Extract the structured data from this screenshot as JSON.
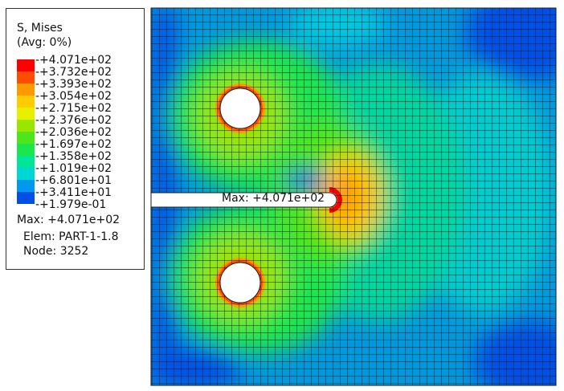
{
  "legend": {
    "title": "S, Mises",
    "subtitle": "(Avg: 0%)",
    "entries": [
      {
        "label": "+4.071e+02",
        "color": "#ff0000"
      },
      {
        "label": "+3.732e+02",
        "color": "#ff4d00"
      },
      {
        "label": "+3.393e+02",
        "color": "#ff9900"
      },
      {
        "label": "+3.054e+02",
        "color": "#ffcc00"
      },
      {
        "label": "+2.715e+02",
        "color": "#e6f000"
      },
      {
        "label": "+2.376e+02",
        "color": "#99e600"
      },
      {
        "label": "+2.036e+02",
        "color": "#4de61a"
      },
      {
        "label": "+1.697e+02",
        "color": "#1ae64d"
      },
      {
        "label": "+1.358e+02",
        "color": "#00e699"
      },
      {
        "label": "+1.019e+02",
        "color": "#00d6d6"
      },
      {
        "label": "+6.801e+01",
        "color": "#0099ee"
      },
      {
        "label": "+3.411e+01",
        "color": "#0050e6"
      },
      {
        "label": "+1.979e-01",
        "color": "#0000e6"
      }
    ],
    "max_line": "Max: +4.071e+02",
    "elem_line": "Elem: PART-1-1.8",
    "node_line": "Node: 3252"
  },
  "plot": {
    "max_annotation": "Max: +4.071e+02",
    "mesh_color": "#1a1a1a",
    "hole_color": "#ffffff"
  }
}
